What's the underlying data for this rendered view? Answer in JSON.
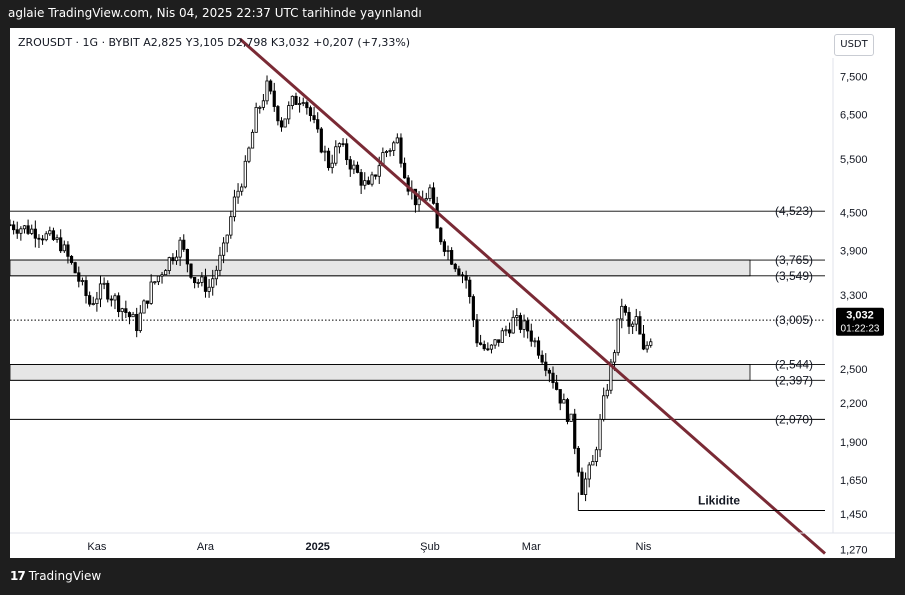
{
  "publication": "aglaie TradingView.com, Nis 04, 2025 22:37 UTC tarihinde yayınlandı",
  "legend": "ZROUSDT · 1G · BYBIT   A2,825  Y3,105  D2,798  K3,032  +0,207 (+7,33%)",
  "currency_button": "USDT",
  "brand": "TradingView",
  "brand_logo": "17",
  "colors": {
    "up": "#ffffff",
    "down": "#000000",
    "trendline": "#7a2a35",
    "band_fill": "#e6e6e6",
    "price_badge": "#000000"
  },
  "chart_data": {
    "type": "candlestick",
    "symbol": "ZROUSDT",
    "interval": "1G",
    "exchange": "BYBIT",
    "scale": "log",
    "ylim": [
      1.23,
      9.0
    ],
    "x_ticks": [
      "Kas",
      "Ara",
      "2025",
      "Şub",
      "Mar",
      "Nis"
    ],
    "y_ticks": [
      "7,500",
      "6,500",
      "5,500",
      "4,500",
      "3,900",
      "3,300",
      "2,900",
      "2,500",
      "2,200",
      "1,900",
      "1,650",
      "1,450",
      "1,270"
    ],
    "y_tick_values": [
      7.5,
      6.5,
      5.5,
      4.5,
      3.9,
      3.3,
      2.9,
      2.5,
      2.2,
      1.9,
      1.65,
      1.45,
      1.27
    ],
    "current_price": "3,032",
    "countdown": "01:22:23",
    "levels": [
      {
        "label": "(4,523)",
        "value": 4.523
      },
      {
        "label": "(3,765)",
        "value": 3.765
      },
      {
        "label": "(3,549)",
        "value": 3.549
      },
      {
        "label": "(3,005)",
        "value": 3.005
      },
      {
        "label": "(2,544)",
        "value": 2.544
      },
      {
        "label": "(2,397)",
        "value": 2.397
      },
      {
        "label": "(2,070)",
        "value": 2.07
      }
    ],
    "bands": [
      [
        3.549,
        3.765
      ],
      [
        2.397,
        2.544
      ]
    ],
    "annotation": {
      "label": "Likidite",
      "value": 1.47
    },
    "trendline": [
      {
        "date": "2024-12-08",
        "value": 8.9
      },
      {
        "date": "2025-04-14",
        "value": 1.95
      }
    ],
    "path": [
      [
        "2024-10-08",
        4.3
      ],
      [
        "2024-10-15",
        4.2
      ],
      [
        "2024-10-22",
        4.0
      ],
      [
        "2024-10-26",
        3.6
      ],
      [
        "2024-10-30",
        3.2
      ],
      [
        "2024-11-03",
        3.4
      ],
      [
        "2024-11-09",
        3.1
      ],
      [
        "2024-11-12",
        2.95
      ],
      [
        "2024-11-16",
        3.4
      ],
      [
        "2024-11-20",
        3.7
      ],
      [
        "2024-11-24",
        4.0
      ],
      [
        "2024-11-28",
        3.5
      ],
      [
        "2024-12-02",
        3.4
      ],
      [
        "2024-12-06",
        3.9
      ],
      [
        "2024-12-09",
        4.7
      ],
      [
        "2024-12-12",
        5.3
      ],
      [
        "2024-12-15",
        6.5
      ],
      [
        "2024-12-18",
        7.2
      ],
      [
        "2024-12-22",
        6.3
      ],
      [
        "2024-12-25",
        6.8
      ],
      [
        "2024-12-28",
        7.0
      ],
      [
        "2025-01-01",
        6.0
      ],
      [
        "2025-01-04",
        5.4
      ],
      [
        "2025-01-07",
        5.8
      ],
      [
        "2025-01-11",
        5.3
      ],
      [
        "2025-01-15",
        4.9
      ],
      [
        "2025-01-19",
        5.6
      ],
      [
        "2025-01-23",
        5.9
      ],
      [
        "2025-01-26",
        5.0
      ],
      [
        "2025-01-29",
        4.6
      ],
      [
        "2025-02-01",
        4.9
      ],
      [
        "2025-02-03",
        4.2
      ],
      [
        "2025-02-07",
        3.8
      ],
      [
        "2025-02-11",
        3.5
      ],
      [
        "2025-02-14",
        2.8
      ],
      [
        "2025-02-17",
        2.65
      ],
      [
        "2025-02-20",
        2.8
      ],
      [
        "2025-02-24",
        3.0
      ],
      [
        "2025-02-28",
        2.9
      ],
      [
        "2025-03-03",
        2.7
      ],
      [
        "2025-03-06",
        2.5
      ],
      [
        "2025-03-09",
        2.25
      ],
      [
        "2025-03-12",
        2.05
      ],
      [
        "2025-03-15",
        1.6
      ],
      [
        "2025-03-18",
        1.75
      ],
      [
        "2025-03-21",
        2.2
      ],
      [
        "2025-03-24",
        2.7
      ],
      [
        "2025-03-26",
        3.2
      ],
      [
        "2025-03-28",
        2.9
      ],
      [
        "2025-03-30",
        3.0
      ],
      [
        "2025-04-01",
        2.65
      ],
      [
        "2025-04-03",
        2.83
      ],
      [
        "2025-04-04",
        3.032
      ]
    ]
  }
}
